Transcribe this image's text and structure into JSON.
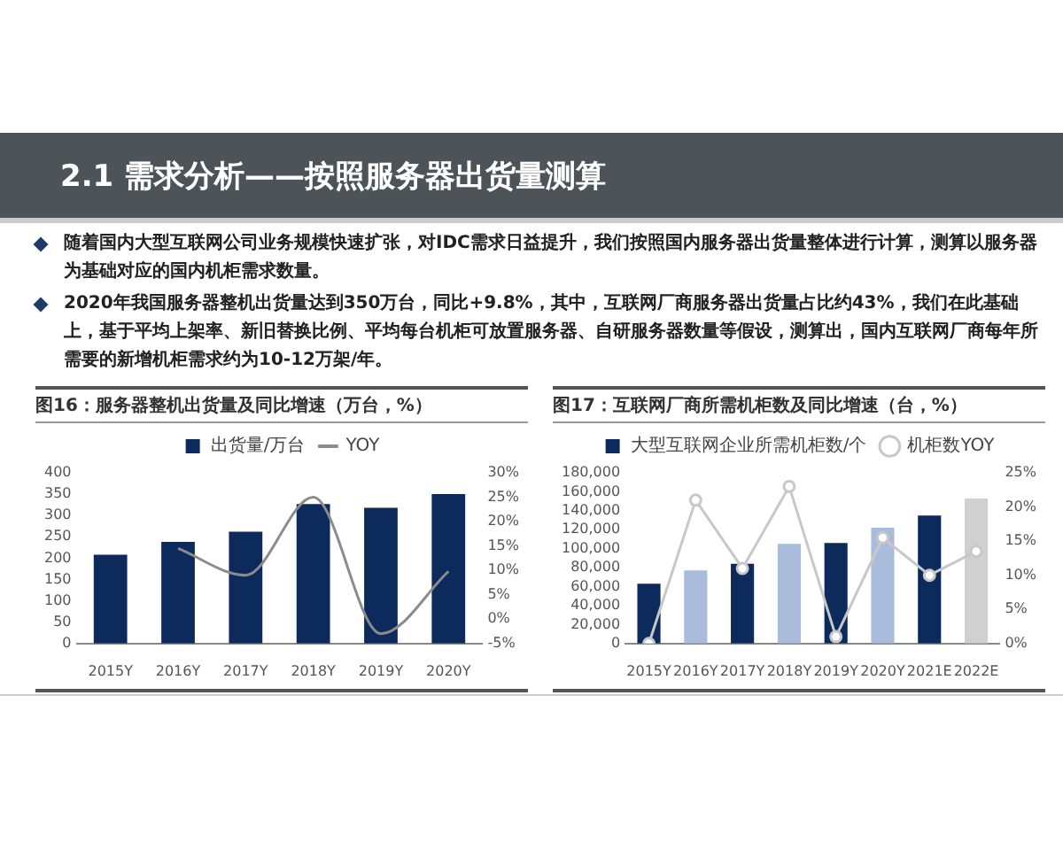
{
  "chart_data": [
    {
      "type": "other",
      "title": "2.1 需求分析——按照服务器出货量测算",
      "annotations": [
        "随着国内大型互联网公司业务规模快速扩张，对IDC需求日益提升，我们按照国内服务器出货量整体进行计算，测算以服务器为基础对应的国内机柜需求数量。",
        "2020年我国服务器整机出货量达到350万台，同比+9.8%，其中，互联网厂商服务器出货量占比约43%，我们在此基础上，基于平均上架率、新旧替换比例、平均每台机柜可放置服务器、自研服务器数量等假设，测算出，国内互联网厂商每年所需要的新增机柜需求约为10-12万架/年。"
      ]
    },
    {
      "type": "bar",
      "title": "图16：服务器整机出货量及同比增速（万台，%）",
      "categories": [
        "2015Y",
        "2016Y",
        "2017Y",
        "2018Y",
        "2019Y",
        "2020Y"
      ],
      "series": [
        {
          "name": "出货量/万台",
          "type": "bar",
          "color": "#0d2a5c",
          "values": [
            208,
            238,
            262,
            327,
            318,
            350
          ]
        },
        {
          "name": "YOY",
          "type": "line",
          "axis": "y2",
          "color": "#8c8c8c",
          "values": [
            null,
            14.5,
            9,
            25,
            -3,
            9.8
          ]
        }
      ],
      "ylim": [
        0,
        400
      ],
      "yticks": [
        0,
        50,
        100,
        150,
        200,
        250,
        300,
        350,
        400
      ],
      "y2lim": [
        -5,
        30
      ],
      "y2ticks": [
        {
          "value": -5,
          "label": "-5%"
        },
        {
          "value": 0,
          "label": "0%"
        },
        {
          "value": 5,
          "label": "5%"
        },
        {
          "value": 10,
          "label": "10%"
        },
        {
          "value": 15,
          "label": "15%"
        },
        {
          "value": 20,
          "label": "20%"
        },
        {
          "value": 25,
          "label": "25%"
        },
        {
          "value": 30,
          "label": "30%"
        }
      ],
      "legend": "top"
    },
    {
      "type": "bar",
      "title": "图17：互联网厂商所需机柜数及同比增速（台，%）",
      "categories": [
        "2015Y",
        "2016Y",
        "2017Y",
        "2018Y",
        "2019Y",
        "2020Y",
        "2021E",
        "2022E"
      ],
      "series": [
        {
          "name": "大型互联网企业所需机柜数/个",
          "type": "bar",
          "color": "#0d2a5c",
          "colors": [
            "#0d2a5c",
            "#a9bcdc",
            "#0d2a5c",
            "#a9bcdc",
            "#0d2a5c",
            "#a9bcdc",
            "#0d2a5c",
            "#d0d0d0"
          ],
          "values": [
            63000,
            77000,
            84000,
            105000,
            106000,
            122000,
            135000,
            153000
          ]
        },
        {
          "name": "机柜数YOY",
          "type": "line",
          "axis": "y2",
          "color": "#c8c8c8",
          "marker": "circle",
          "values": [
            0,
            21,
            11,
            23,
            1,
            15.5,
            10,
            13.5
          ]
        }
      ],
      "ylim": [
        0,
        180000
      ],
      "yticks": [
        0,
        {
          "value": 20000,
          "label": "20,000"
        },
        {
          "value": 40000,
          "label": "40,000"
        },
        {
          "value": 60000,
          "label": "60,000"
        },
        {
          "value": 80000,
          "label": "80,000"
        },
        {
          "value": 100000,
          "label": "100,000"
        },
        {
          "value": 120000,
          "label": "120,000"
        },
        {
          "value": 140000,
          "label": "140,000"
        },
        {
          "value": 160000,
          "label": "160,000"
        },
        {
          "value": 180000,
          "label": "180,000"
        }
      ],
      "y2lim": [
        0,
        25
      ],
      "y2ticks": [
        {
          "value": 0,
          "label": "0%"
        },
        {
          "value": 5,
          "label": "5%"
        },
        {
          "value": 10,
          "label": "10%"
        },
        {
          "value": 15,
          "label": "15%"
        },
        {
          "value": 20,
          "label": "20%"
        },
        {
          "value": 25,
          "label": "25%"
        }
      ],
      "legend": "top"
    }
  ]
}
